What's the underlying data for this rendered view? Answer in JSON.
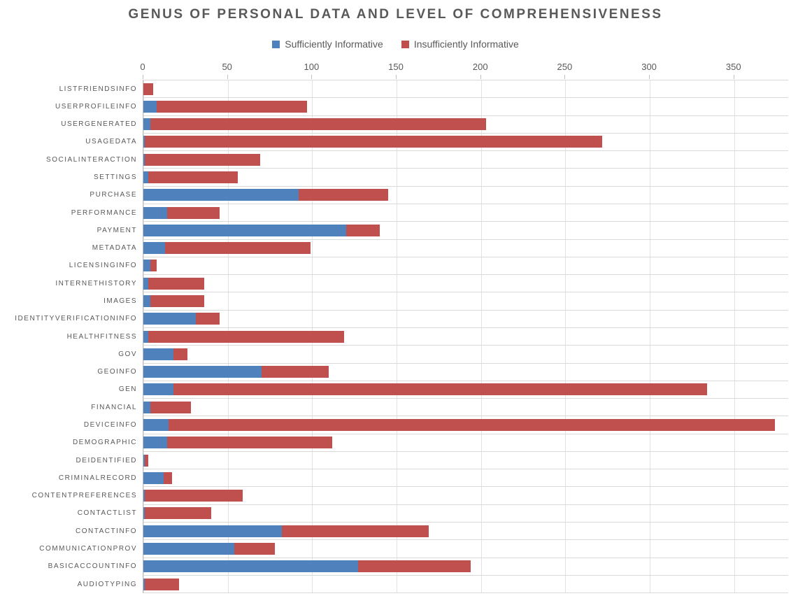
{
  "chart_data": {
    "type": "bar",
    "orientation": "horizontal",
    "stacked": true,
    "title": "GENUS OF PERSONAL DATA AND LEVEL OF COMPREHENSIVENESS",
    "xlabel": "",
    "ylabel": "",
    "xlim": [
      0,
      382
    ],
    "x_ticks": [
      0,
      50,
      100,
      150,
      200,
      250,
      300,
      350
    ],
    "grid": "vertical-major",
    "legend_position": "top-center",
    "categories": [
      "LISTFRIENDSINFO",
      "USERPROFILEINFO",
      "USERGENERATED",
      "USAGEDATA",
      "SOCIALINTERACTION",
      "SETTINGS",
      "PURCHASE",
      "PERFORMANCE",
      "PAYMENT",
      "METADATA",
      "LICENSINGINFO",
      "INTERNETHISTORY",
      "IMAGES",
      "IDENTITYVERIFICATIONINFO",
      "HEALTHFITNESS",
      "GOV",
      "GEOINFO",
      "GEN",
      "FINANCIAL",
      "DEVICEINFO",
      "DEMOGRAPHIC",
      "DEIDENTIFIED",
      "CRIMINALRECORD",
      "CONTENTPREFERENCES",
      "CONTACTLIST",
      "CONTACTINFO",
      "COMMUNICATIONPROV",
      "BASICACCOUNTINFO",
      "AUDIOTYPING"
    ],
    "series": [
      {
        "name": "Sufficiently Informative",
        "color": "#4F81BD",
        "values": [
          0,
          8,
          4,
          1,
          1,
          3,
          92,
          14,
          120,
          13,
          4,
          3,
          4,
          31,
          3,
          18,
          70,
          18,
          4,
          15,
          14,
          1,
          12,
          1,
          1,
          82,
          54,
          127,
          1
        ]
      },
      {
        "name": "Insufficiently Informative",
        "color": "#C0504D",
        "values": [
          6,
          89,
          199,
          271,
          68,
          53,
          53,
          31,
          20,
          86,
          4,
          33,
          32,
          14,
          116,
          8,
          40,
          316,
          24,
          359,
          98,
          2,
          5,
          58,
          39,
          87,
          24,
          67,
          20
        ]
      }
    ]
  }
}
